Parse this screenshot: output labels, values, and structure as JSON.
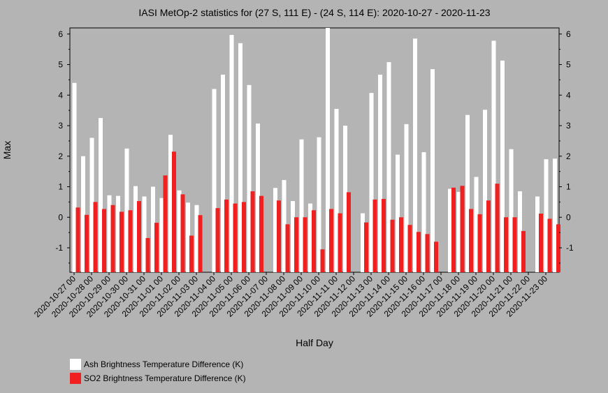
{
  "chart_data": {
    "type": "bar",
    "title": "IASI MetOp-2 statistics for (27 S, 111 E) - (24 S, 114 E): 2020-10-27 - 2020-11-23",
    "xlabel": "Half Day",
    "ylabel": "Max",
    "ylim": [
      -1.8,
      6.2
    ],
    "yticks": [
      "6",
      "5",
      "4",
      "3",
      "2",
      "1",
      "0",
      "-1"
    ],
    "ytick_values": [
      6,
      5,
      4,
      3,
      2,
      1,
      0,
      -1
    ],
    "categories": [
      "2020-10-27 00",
      "2020-10-27 12",
      "2020-10-28 00",
      "2020-10-28 12",
      "2020-10-29 00",
      "2020-10-29 12",
      "2020-10-30 00",
      "2020-10-30 12",
      "2020-10-31 00",
      "2020-10-31 12",
      "2020-11-01 00",
      "2020-11-01 12",
      "2020-11-02 00",
      "2020-11-02 12",
      "2020-11-03 00",
      "2020-11-03 12",
      "2020-11-04 00",
      "2020-11-04 12",
      "2020-11-05 00",
      "2020-11-05 12",
      "2020-11-06 00",
      "2020-11-06 12",
      "2020-11-07 00",
      "2020-11-07 12",
      "2020-11-08 00",
      "2020-11-08 12",
      "2020-11-09 00",
      "2020-11-09 12",
      "2020-11-10 00",
      "2020-11-10 12",
      "2020-11-11 00",
      "2020-11-11 12",
      "2020-11-12 00",
      "2020-11-12 12",
      "2020-11-13 00",
      "2020-11-13 12",
      "2020-11-14 00",
      "2020-11-14 12",
      "2020-11-15 00",
      "2020-11-15 12",
      "2020-11-16 00",
      "2020-11-16 12",
      "2020-11-17 00",
      "2020-11-17 12",
      "2020-11-18 00",
      "2020-11-18 12",
      "2020-11-19 00",
      "2020-11-19 12",
      "2020-11-20 00",
      "2020-11-20 12",
      "2020-11-21 00",
      "2020-11-21 12",
      "2020-11-22 00",
      "2020-11-22 12",
      "2020-11-23 00",
      "2020-11-23 12"
    ],
    "xtick_labels": [
      "2020-10-27 00",
      "2020-10-28 00",
      "2020-10-29 00",
      "2020-10-30 00",
      "2020-10-31 00",
      "2020-11-01 00",
      "2020-11-02 00",
      "2020-11-03 00",
      "2020-11-04 00",
      "2020-11-05 00",
      "2020-11-06 00",
      "2020-11-07 00",
      "2020-11-08 00",
      "2020-11-09 00",
      "2020-11-10 00",
      "2020-11-11 00",
      "2020-11-12 00",
      "2020-11-13 00",
      "2020-11-14 00",
      "2020-11-15 00",
      "2020-11-16 00",
      "2020-11-17 00",
      "2020-11-18 00",
      "2020-11-19 00",
      "2020-11-20 00",
      "2020-11-21 00",
      "2020-11-22 00",
      "2020-11-23 00"
    ],
    "series": [
      {
        "name": "Ash Brightness Temperature Difference (K)",
        "color": "#ffffff",
        "values": [
          4.4,
          2.0,
          2.6,
          3.25,
          0.72,
          0.7,
          2.25,
          1.02,
          0.68,
          1.0,
          0.63,
          2.7,
          0.88,
          0.48,
          0.4,
          null,
          4.2,
          4.67,
          5.97,
          5.7,
          4.33,
          3.07,
          null,
          0.96,
          1.22,
          0.53,
          2.55,
          0.45,
          2.62,
          6.2,
          3.55,
          3.0,
          null,
          0.13,
          4.07,
          4.67,
          5.08,
          2.05,
          3.05,
          5.85,
          2.13,
          4.85,
          null,
          0.93,
          0.83,
          3.35,
          1.32,
          3.52,
          5.78,
          5.13,
          2.23,
          0.85,
          null,
          0.68,
          1.9,
          1.92
        ]
      },
      {
        "name": "SO2 Brightness Temperature Difference (K)",
        "color": "#f02020",
        "values": [
          0.32,
          0.08,
          0.5,
          0.27,
          0.4,
          0.18,
          0.23,
          0.53,
          -0.68,
          -0.18,
          1.37,
          2.15,
          0.75,
          -0.6,
          0.07,
          null,
          0.3,
          0.58,
          0.45,
          0.5,
          0.85,
          0.7,
          null,
          0.55,
          -0.23,
          0.0,
          0.0,
          0.23,
          -1.05,
          0.27,
          0.13,
          0.82,
          null,
          -0.17,
          0.58,
          0.6,
          -0.08,
          0.0,
          -0.25,
          -0.48,
          -0.55,
          -0.8,
          null,
          0.97,
          1.03,
          0.27,
          0.1,
          0.55,
          1.1,
          0.0,
          0.0,
          -0.45,
          null,
          0.12,
          -0.05,
          -0.23
        ]
      }
    ],
    "grid": false,
    "legend_position": "bottom-left"
  }
}
